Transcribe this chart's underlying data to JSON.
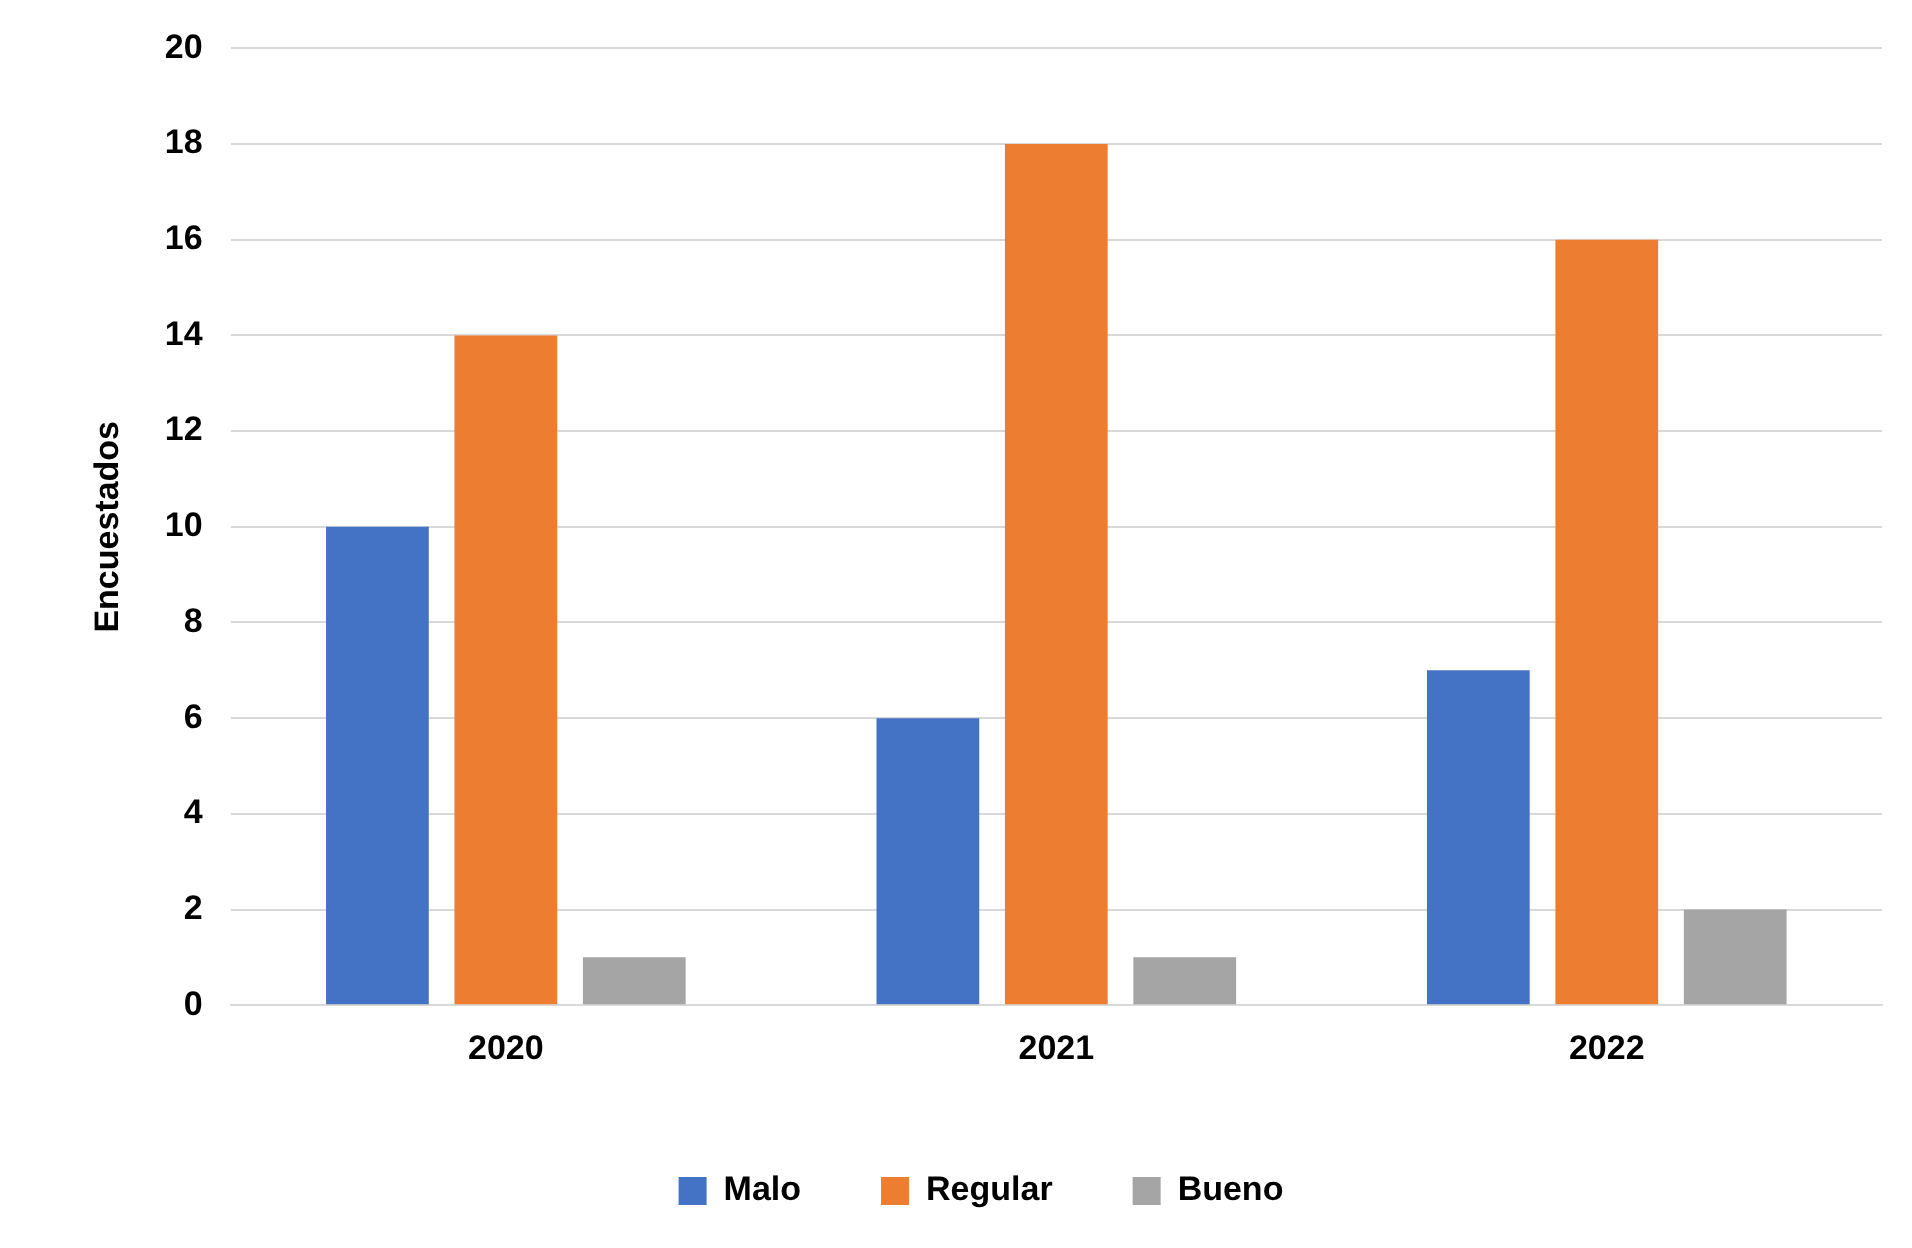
{
  "chart_data": {
    "type": "bar",
    "ylabel": "Encuestados",
    "categories": [
      "2020",
      "2021",
      "2022"
    ],
    "series": [
      {
        "name": "Malo",
        "color": "#4472c4",
        "values": [
          10,
          6,
          7
        ]
      },
      {
        "name": "Regular",
        "color": "#ed7d31",
        "values": [
          14,
          18,
          16
        ]
      },
      {
        "name": "Bueno",
        "color": "#a5a5a5",
        "values": [
          1,
          1,
          2
        ]
      }
    ],
    "ylim": [
      0,
      20
    ],
    "yticks": [
      0,
      2,
      4,
      6,
      8,
      10,
      12,
      14,
      16,
      18,
      20
    ],
    "grid": "y",
    "legend": "bottom"
  }
}
